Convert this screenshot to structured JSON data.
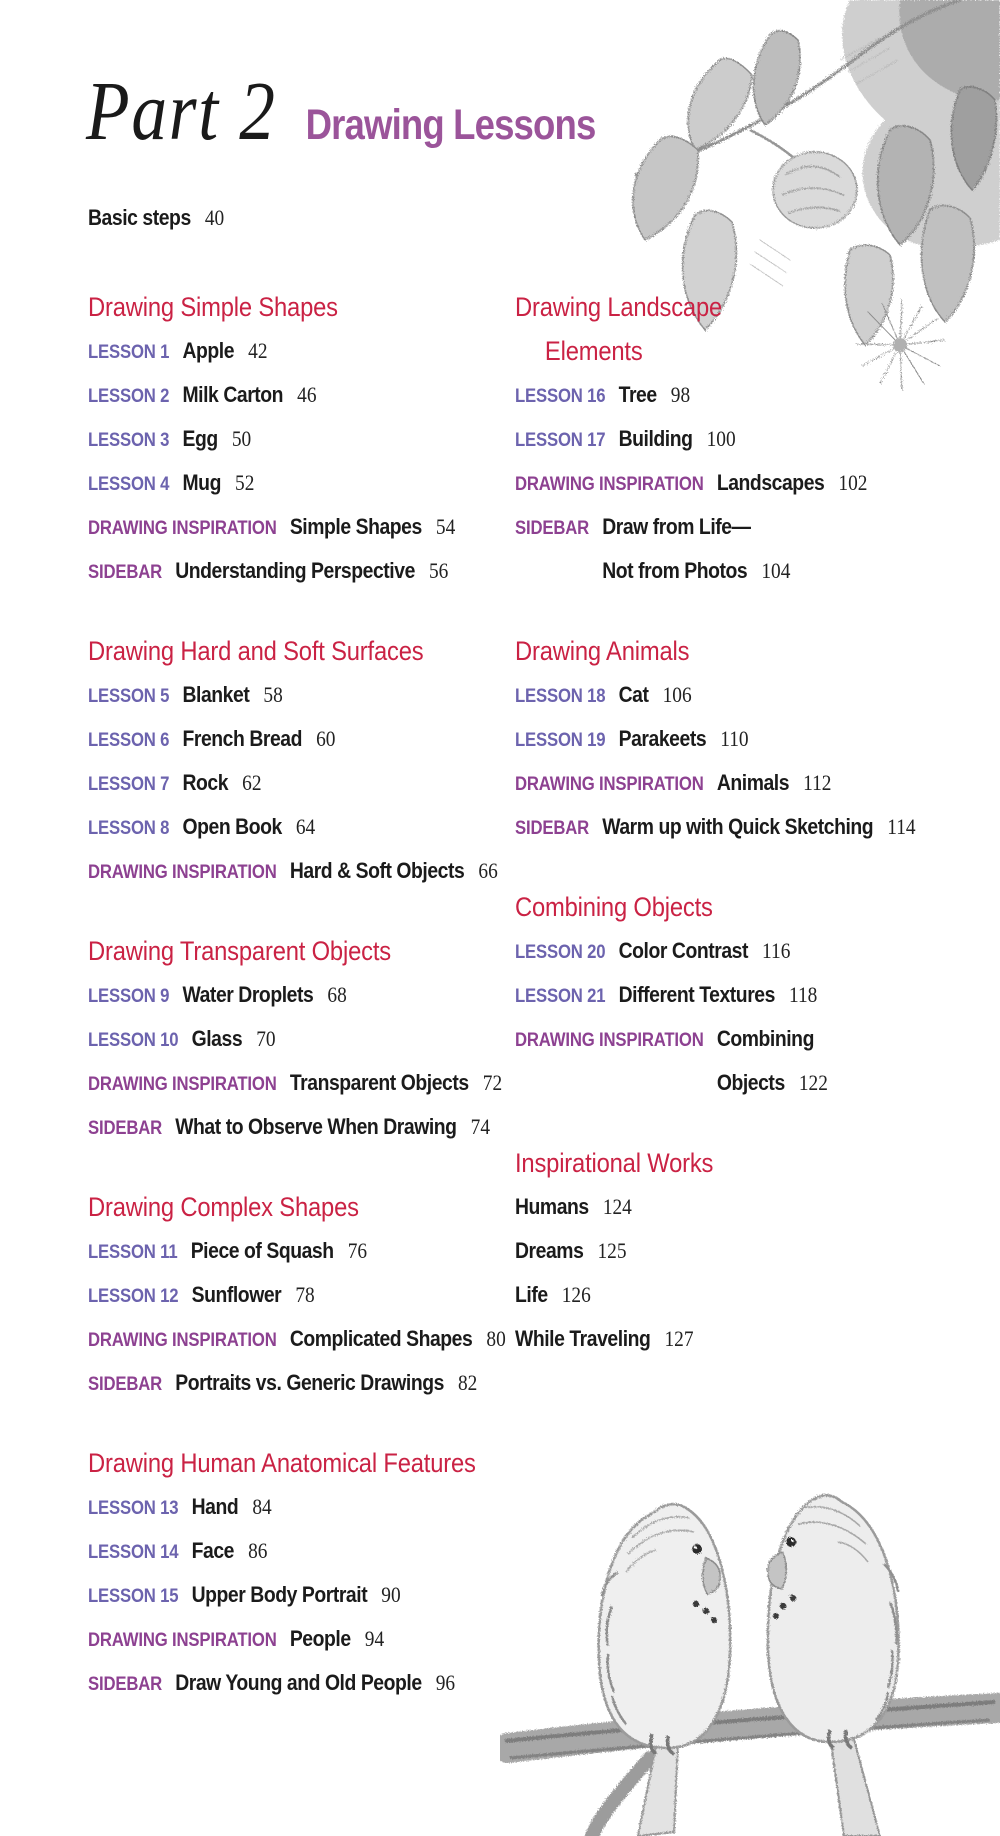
{
  "colors": {
    "section_heading": "#CA2244",
    "lesson_label": "#6C63AE",
    "inspiration_label": "#8D4191",
    "part_label_color": "#1A1A1A",
    "book_title_color": "#9B549A",
    "body_text": "#1B1B1B",
    "page_number": "#222222"
  },
  "header": {
    "part_label": "Part 2",
    "title": "Drawing Lessons"
  },
  "intro": {
    "title": "Basic steps",
    "page": "40"
  },
  "columns": {
    "left": [
      {
        "heading_lines": [
          "Drawing Simple Shapes"
        ],
        "entries": [
          {
            "label": "LESSON 1",
            "style": "lesson",
            "title_lines": [
              "Apple"
            ],
            "page": "42"
          },
          {
            "label": "LESSON 2",
            "style": "lesson",
            "title_lines": [
              "Milk Carton"
            ],
            "page": "46"
          },
          {
            "label": "LESSON 3",
            "style": "lesson",
            "title_lines": [
              "Egg"
            ],
            "page": "50"
          },
          {
            "label": "LESSON 4",
            "style": "lesson",
            "title_lines": [
              "Mug"
            ],
            "page": "52"
          },
          {
            "label": "DRAWING INSPIRATION",
            "style": "inspiration",
            "title_lines": [
              "Simple Shapes"
            ],
            "page": "54"
          },
          {
            "label": "SIDEBAR",
            "style": "sidebar",
            "title_lines": [
              "Understanding Perspective"
            ],
            "page": "56"
          }
        ]
      },
      {
        "heading_lines": [
          "Drawing Hard and Soft Surfaces"
        ],
        "entries": [
          {
            "label": "LESSON 5",
            "style": "lesson",
            "title_lines": [
              "Blanket"
            ],
            "page": "58"
          },
          {
            "label": "LESSON 6",
            "style": "lesson",
            "title_lines": [
              "French Bread"
            ],
            "page": "60"
          },
          {
            "label": "LESSON 7",
            "style": "lesson",
            "title_lines": [
              "Rock"
            ],
            "page": "62"
          },
          {
            "label": "LESSON 8",
            "style": "lesson",
            "title_lines": [
              "Open Book"
            ],
            "page": "64"
          },
          {
            "label": "DRAWING INSPIRATION",
            "style": "inspiration",
            "title_lines": [
              "Hard & Soft Objects"
            ],
            "page": "66"
          }
        ]
      },
      {
        "heading_lines": [
          "Drawing Transparent Objects"
        ],
        "entries": [
          {
            "label": "LESSON 9",
            "style": "lesson",
            "title_lines": [
              "Water Droplets"
            ],
            "page": "68"
          },
          {
            "label": "LESSON 10",
            "style": "lesson",
            "title_lines": [
              "Glass"
            ],
            "page": "70"
          },
          {
            "label": "DRAWING INSPIRATION",
            "style": "inspiration",
            "title_lines": [
              "Transparent Objects"
            ],
            "page": "72"
          },
          {
            "label": "SIDEBAR",
            "style": "sidebar",
            "title_lines": [
              "What to Observe When Drawing"
            ],
            "page": "74"
          }
        ]
      },
      {
        "heading_lines": [
          "Drawing Complex Shapes"
        ],
        "entries": [
          {
            "label": "LESSON 11",
            "style": "lesson",
            "title_lines": [
              "Piece of Squash"
            ],
            "page": "76"
          },
          {
            "label": "LESSON 12",
            "style": "lesson",
            "title_lines": [
              "Sunflower"
            ],
            "page": "78"
          },
          {
            "label": "DRAWING INSPIRATION",
            "style": "inspiration",
            "title_lines": [
              "Complicated Shapes"
            ],
            "page": "80"
          },
          {
            "label": "SIDEBAR",
            "style": "sidebar",
            "title_lines": [
              "Portraits vs. Generic Drawings"
            ],
            "page": "82"
          }
        ]
      },
      {
        "heading_lines": [
          "Drawing Human Anatomical Features"
        ],
        "entries": [
          {
            "label": "LESSON 13",
            "style": "lesson",
            "title_lines": [
              "Hand"
            ],
            "page": "84"
          },
          {
            "label": "LESSON 14",
            "style": "lesson",
            "title_lines": [
              "Face"
            ],
            "page": "86"
          },
          {
            "label": "LESSON 15",
            "style": "lesson",
            "title_lines": [
              "Upper Body Portrait"
            ],
            "page": "90"
          },
          {
            "label": "DRAWING INSPIRATION",
            "style": "inspiration",
            "title_lines": [
              "People"
            ],
            "page": "94"
          },
          {
            "label": "SIDEBAR",
            "style": "sidebar",
            "title_lines": [
              "Draw Young and Old People"
            ],
            "page": "96"
          }
        ]
      }
    ],
    "right": [
      {
        "heading_lines": [
          "Drawing Landscape",
          "Elements"
        ],
        "entries": [
          {
            "label": "LESSON 16",
            "style": "lesson",
            "title_lines": [
              "Tree"
            ],
            "page": "98"
          },
          {
            "label": "LESSON 17",
            "style": "lesson",
            "title_lines": [
              "Building"
            ],
            "page": "100"
          },
          {
            "label": "DRAWING INSPIRATION",
            "style": "inspiration",
            "title_lines": [
              "Landscapes"
            ],
            "page": "102"
          },
          {
            "label": "SIDEBAR",
            "style": "sidebar",
            "title_lines": [
              "Draw from Life—",
              "Not from Photos"
            ],
            "page": "104"
          }
        ]
      },
      {
        "heading_lines": [
          "Drawing Animals"
        ],
        "entries": [
          {
            "label": "LESSON 18",
            "style": "lesson",
            "title_lines": [
              "Cat"
            ],
            "page": "106"
          },
          {
            "label": "LESSON 19",
            "style": "lesson",
            "title_lines": [
              "Parakeets"
            ],
            "page": "110"
          },
          {
            "label": "DRAWING INSPIRATION",
            "style": "inspiration",
            "title_lines": [
              "Animals"
            ],
            "page": "112"
          },
          {
            "label": "SIDEBAR",
            "style": "sidebar",
            "title_lines": [
              "Warm up with Quick Sketching"
            ],
            "page": "114"
          }
        ]
      },
      {
        "heading_lines": [
          "Combining Objects"
        ],
        "entries": [
          {
            "label": "LESSON 20",
            "style": "lesson",
            "title_lines": [
              "Color Contrast"
            ],
            "page": "116"
          },
          {
            "label": "LESSON 21",
            "style": "lesson",
            "title_lines": [
              "Different Textures"
            ],
            "page": "118"
          },
          {
            "label": "DRAWING INSPIRATION",
            "style": "inspiration",
            "title_lines": [
              "Combining",
              "Objects"
            ],
            "page": "122"
          }
        ]
      },
      {
        "heading_lines": [
          "Inspirational Works"
        ],
        "entries": [
          {
            "label": "",
            "style": "plain",
            "title_lines": [
              "Humans"
            ],
            "page": "124"
          },
          {
            "label": "",
            "style": "plain",
            "title_lines": [
              "Dreams"
            ],
            "page": "125"
          },
          {
            "label": "",
            "style": "plain",
            "title_lines": [
              "Life"
            ],
            "page": "126"
          },
          {
            "label": "",
            "style": "plain",
            "title_lines": [
              "While Traveling"
            ],
            "page": "127"
          }
        ]
      }
    ]
  },
  "illustrations": {
    "top_right": "pencil sketch of flowering branch with leaves",
    "bottom_right": "pencil sketch of two parakeets perched on a branch"
  }
}
